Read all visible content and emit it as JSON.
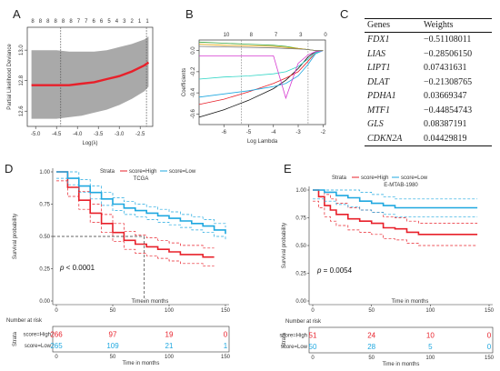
{
  "panels": {
    "a": {
      "letter": "A",
      "top_ticks": [
        "8",
        "8",
        "8",
        "8",
        "8",
        "8",
        "7",
        "7",
        "6",
        "6",
        "5",
        "4",
        "3",
        "2",
        "1",
        "1"
      ],
      "ylabel": "Partial Likelihood Deviance",
      "xlabel": "Log(λ)",
      "x_ticks": [
        "-5.0",
        "-4.5",
        "-4.0",
        "-3.5",
        "-3.0",
        "-2.5"
      ],
      "y_ticks": [
        "12.6",
        "12.8",
        "13.0"
      ]
    },
    "b": {
      "letter": "B",
      "top_ticks": [
        "10",
        "8",
        "7",
        "3",
        "0"
      ],
      "ylabel": "Coefficients",
      "xlabel": "Log Lambda",
      "x_ticks": [
        "-6",
        "-5",
        "-4",
        "-3",
        "-2"
      ],
      "y_ticks": [
        "-0.6",
        "-0.4",
        "-0.2",
        "0.0"
      ]
    },
    "c": {
      "letter": "C",
      "header": {
        "gene": "Genes",
        "weight": "Weights"
      },
      "rows": [
        {
          "gene": "FDX1",
          "weight": "−0.51108011"
        },
        {
          "gene": "LIAS",
          "weight": "−0.28506150"
        },
        {
          "gene": "LIPT1",
          "weight": "0.07431631"
        },
        {
          "gene": "DLAT",
          "weight": "−0.21308765"
        },
        {
          "gene": "PDHA1",
          "weight": "0.03669347"
        },
        {
          "gene": "MTF1",
          "weight": "−0.44854743"
        },
        {
          "gene": "GLS",
          "weight": "0.08387191"
        },
        {
          "gene": "CDKN2A",
          "weight": "0.04429819"
        }
      ]
    },
    "d": {
      "letter": "D",
      "title": "TCGA",
      "strata_label": "Strata",
      "legend": [
        "score=High",
        "score=Low"
      ],
      "ylabel": "Survival probability",
      "xlabel": "Time in months",
      "pvalue": "< 0.0001",
      "p_letter": "p",
      "x_ticks": [
        "0",
        "50",
        "100",
        "150"
      ],
      "y_ticks": [
        "0.00",
        "0.25",
        "0.50",
        "0.75",
        "1.00"
      ],
      "risk_title": "Number at risk",
      "risk_axis": "Strata",
      "risk_rows": [
        {
          "label": "score=High",
          "values": [
            "266",
            "97",
            "19",
            "0"
          ]
        },
        {
          "label": "score=Low",
          "values": [
            "265",
            "109",
            "21",
            "1"
          ]
        }
      ],
      "risk_x_ticks": [
        "0",
        "50",
        "100",
        "150"
      ]
    },
    "e": {
      "letter": "E",
      "title": "E-MTAB-1980",
      "strata_label": "Strata",
      "legend": [
        "score=High",
        "score=Low"
      ],
      "ylabel": "Survival probability",
      "xlabel": "Time in months",
      "pvalue": "= 0.0054",
      "p_letter": "p",
      "x_ticks": [
        "0",
        "50",
        "100",
        "150"
      ],
      "y_ticks": [
        "0.00",
        "0.25",
        "0.50",
        "0.75",
        "1.00"
      ],
      "risk_title": "Number at risk",
      "risk_axis": "Strata",
      "risk_rows": [
        {
          "label": "score=High",
          "values": [
            "51",
            "24",
            "10",
            "0"
          ]
        },
        {
          "label": "score=Low",
          "values": [
            "50",
            "28",
            "5",
            "0"
          ]
        }
      ],
      "risk_x_ticks": [
        "0",
        "50",
        "100",
        "150"
      ]
    }
  },
  "colors": {
    "high": "#e8202a",
    "low": "#1fa8e0",
    "band": "#a9a9a9"
  },
  "chart_data": [
    {
      "type": "line",
      "panel": "A",
      "xlabel": "Log(λ)",
      "ylabel": "Partial Likelihood Deviance",
      "xlim": [
        -5.2,
        -2.2
      ],
      "ylim": [
        12.5,
        13.15
      ],
      "x": [
        -5.1,
        -4.8,
        -4.5,
        -4.2,
        -3.9,
        -3.6,
        -3.3,
        -3.0,
        -2.7,
        -2.4,
        -2.3
      ],
      "series": [
        {
          "name": "",
          "values": [
            12.77,
            12.77,
            12.77,
            12.77,
            12.78,
            12.79,
            12.81,
            12.83,
            12.86,
            12.9,
            12.92
          ]
        },
        {
          "name": "",
          "values": [
            12.55,
            12.55,
            12.55,
            12.56,
            12.57,
            12.59,
            12.61,
            12.64,
            12.68,
            12.73,
            12.76
          ]
        },
        {
          "name": "",
          "values": [
            13.0,
            13.0,
            13.0,
            12.99,
            12.99,
            12.99,
            13.0,
            13.02,
            13.04,
            13.07,
            13.09
          ]
        }
      ],
      "vlines": [
        -4.4,
        -2.35
      ]
    },
    {
      "type": "line",
      "panel": "B",
      "xlabel": "Log Lambda",
      "ylabel": "Coefficients",
      "xlim": [
        -7,
        -1.9
      ],
      "ylim": [
        -0.7,
        0.1
      ],
      "x": [
        -7,
        -6,
        -5,
        -4,
        -3.5,
        -3,
        -2.6,
        -2.3,
        -2.0
      ],
      "series": [
        {
          "name": "",
          "values": [
            -0.63,
            -0.56,
            -0.47,
            -0.36,
            -0.28,
            -0.17,
            -0.06,
            -0.01,
            0.0
          ]
        },
        {
          "name": "",
          "values": [
            -0.51,
            -0.46,
            -0.39,
            -0.31,
            -0.26,
            -0.2,
            -0.1,
            -0.02,
            0.0
          ]
        },
        {
          "name": "",
          "values": [
            -0.44,
            -0.41,
            -0.38,
            -0.34,
            -0.31,
            -0.24,
            -0.13,
            -0.03,
            0.0
          ]
        },
        {
          "name": "",
          "values": [
            -0.27,
            -0.25,
            -0.24,
            -0.22,
            -0.2,
            -0.15,
            -0.08,
            -0.02,
            0.0
          ]
        },
        {
          "name": "",
          "values": [
            -0.05,
            -0.05,
            -0.05,
            -0.05,
            -0.45,
            -0.12,
            -0.04,
            -0.01,
            0.0
          ]
        },
        {
          "name": "",
          "values": [
            0.08,
            0.07,
            0.06,
            0.05,
            0.04,
            0.02,
            0.01,
            0.0,
            0.0
          ]
        },
        {
          "name": "",
          "values": [
            0.06,
            0.05,
            0.045,
            0.04,
            0.03,
            0.02,
            0.01,
            0.0,
            0.0
          ]
        },
        {
          "name": "",
          "values": [
            0.04,
            0.035,
            0.03,
            0.025,
            0.02,
            0.015,
            0.01,
            0.0,
            0.0
          ]
        }
      ],
      "vlines": [
        -5.3,
        -2.6
      ]
    },
    {
      "type": "line",
      "panel": "D",
      "title": "TCGA",
      "xlabel": "Time in months",
      "ylabel": "Survival probability",
      "xlim": [
        0,
        150
      ],
      "ylim": [
        0,
        1
      ],
      "series": [
        {
          "name": "score=High",
          "x": [
            0,
            10,
            20,
            30,
            40,
            50,
            60,
            70,
            80,
            90,
            100,
            110,
            120,
            130,
            140
          ],
          "values": [
            1.0,
            0.88,
            0.78,
            0.68,
            0.6,
            0.53,
            0.47,
            0.44,
            0.42,
            0.4,
            0.38,
            0.36,
            0.36,
            0.34,
            0.34
          ]
        },
        {
          "name": "score=Low",
          "x": [
            0,
            10,
            20,
            30,
            40,
            50,
            60,
            70,
            80,
            90,
            100,
            110,
            120,
            130,
            140,
            150
          ],
          "values": [
            1.0,
            0.95,
            0.89,
            0.84,
            0.79,
            0.75,
            0.72,
            0.7,
            0.68,
            0.66,
            0.64,
            0.62,
            0.6,
            0.58,
            0.55,
            0.52
          ]
        }
      ],
      "median_survival": {
        "x": 78,
        "y": 0.5
      }
    },
    {
      "type": "line",
      "panel": "E",
      "title": "E-MTAB-1980",
      "xlabel": "Time in months",
      "ylabel": "Survival probability",
      "xlim": [
        0,
        150
      ],
      "ylim": [
        0,
        1
      ],
      "series": [
        {
          "name": "score=High",
          "x": [
            0,
            5,
            10,
            15,
            20,
            30,
            40,
            50,
            60,
            70,
            80,
            90,
            100,
            140
          ],
          "values": [
            1.0,
            0.94,
            0.86,
            0.82,
            0.78,
            0.74,
            0.72,
            0.7,
            0.66,
            0.65,
            0.62,
            0.6,
            0.6,
            0.6
          ]
        },
        {
          "name": "score=Low",
          "x": [
            0,
            10,
            20,
            30,
            40,
            50,
            60,
            70,
            80,
            90,
            100,
            140
          ],
          "values": [
            1.0,
            0.98,
            0.95,
            0.93,
            0.9,
            0.88,
            0.86,
            0.84,
            0.84,
            0.84,
            0.84,
            0.84
          ]
        }
      ]
    }
  ]
}
